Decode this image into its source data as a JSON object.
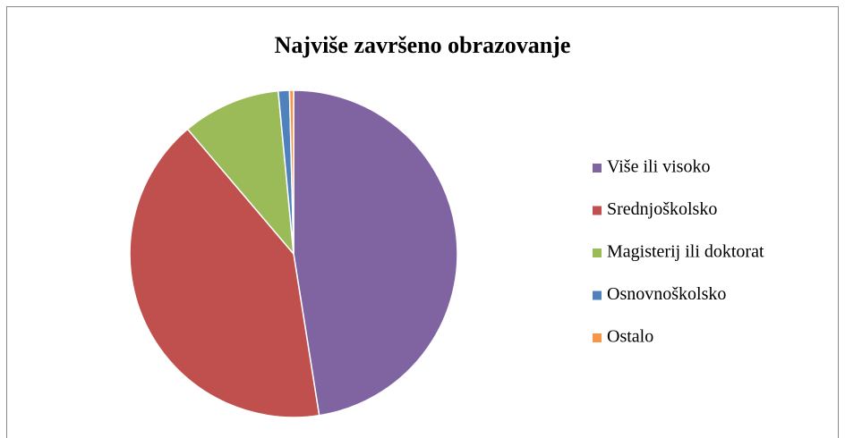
{
  "chart_data": {
    "type": "pie",
    "title": "Najviše završeno obrazovanje",
    "categories": [
      "Više ili visoko",
      "Srednjoškolsko",
      "Magisterij ili doktorat",
      "Osnovnoškolsko",
      "Ostalo"
    ],
    "values": [
      47.5,
      41.3,
      9.7,
      1.1,
      0.4
    ],
    "colors": [
      "#8064a2",
      "#c0504d",
      "#9bbb59",
      "#4f81bd",
      "#f79646"
    ],
    "legend": "right"
  }
}
